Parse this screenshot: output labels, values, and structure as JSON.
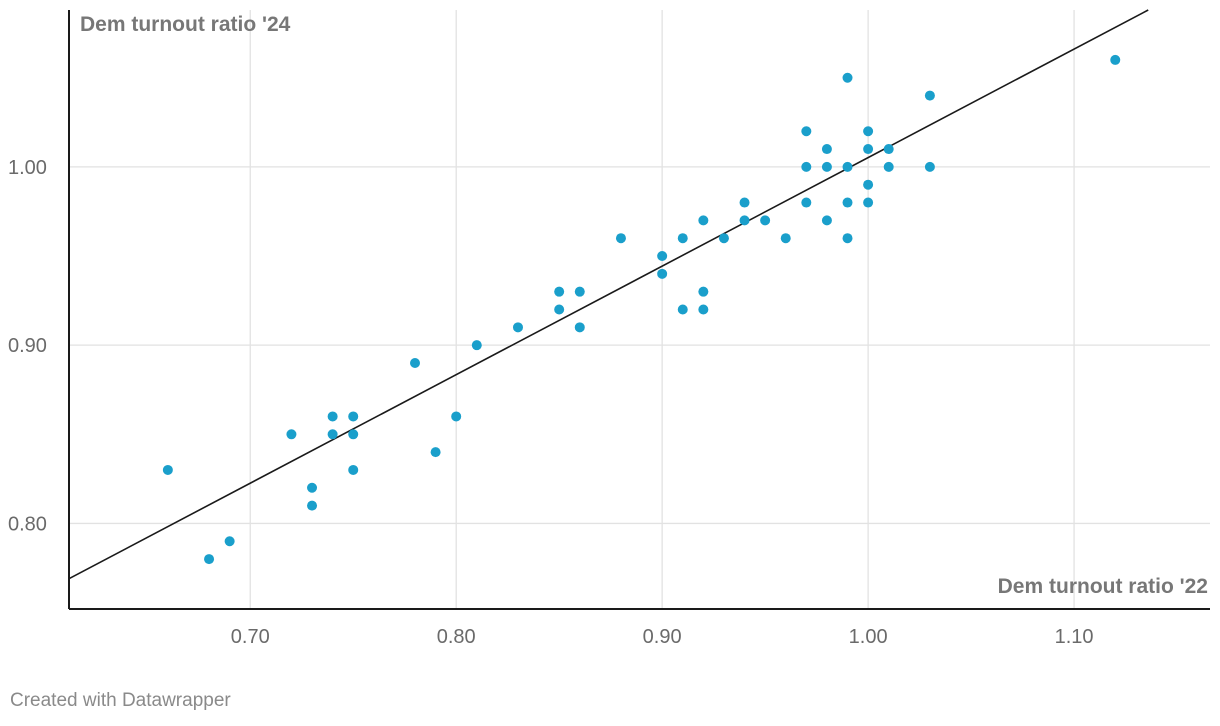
{
  "chart_data": {
    "type": "scatter",
    "xlabel": "Dem turnout ratio '22",
    "ylabel": "Dem turnout ratio '24",
    "xlim": [
      0.612,
      1.166
    ],
    "ylim": [
      0.752,
      1.088
    ],
    "x_ticks": [
      0.7,
      0.8,
      0.9,
      1.0,
      1.1
    ],
    "x_tick_labels": [
      "0.70",
      "0.80",
      "0.90",
      "1.00",
      "1.10"
    ],
    "y_ticks": [
      0.8,
      0.9,
      1.0
    ],
    "y_tick_labels": [
      "0.80",
      "0.90",
      "1.00"
    ],
    "grid": true,
    "point_color": "#1a9fcb",
    "trendline": {
      "x1": 0.612,
      "y1": 0.769,
      "x2": 1.136,
      "y2": 1.088,
      "color": "#1a1a1a"
    },
    "points": [
      {
        "x": 0.66,
        "y": 0.83
      },
      {
        "x": 0.68,
        "y": 0.78
      },
      {
        "x": 0.69,
        "y": 0.79
      },
      {
        "x": 0.72,
        "y": 0.85
      },
      {
        "x": 0.73,
        "y": 0.82
      },
      {
        "x": 0.73,
        "y": 0.81
      },
      {
        "x": 0.74,
        "y": 0.86
      },
      {
        "x": 0.74,
        "y": 0.85
      },
      {
        "x": 0.75,
        "y": 0.86
      },
      {
        "x": 0.75,
        "y": 0.85
      },
      {
        "x": 0.75,
        "y": 0.83
      },
      {
        "x": 0.78,
        "y": 0.89
      },
      {
        "x": 0.79,
        "y": 0.84
      },
      {
        "x": 0.8,
        "y": 0.86
      },
      {
        "x": 0.81,
        "y": 0.9
      },
      {
        "x": 0.83,
        "y": 0.91
      },
      {
        "x": 0.85,
        "y": 0.93
      },
      {
        "x": 0.85,
        "y": 0.92
      },
      {
        "x": 0.86,
        "y": 0.93
      },
      {
        "x": 0.86,
        "y": 0.91
      },
      {
        "x": 0.88,
        "y": 0.96
      },
      {
        "x": 0.9,
        "y": 0.95
      },
      {
        "x": 0.9,
        "y": 0.94
      },
      {
        "x": 0.91,
        "y": 0.96
      },
      {
        "x": 0.91,
        "y": 0.92
      },
      {
        "x": 0.92,
        "y": 0.97
      },
      {
        "x": 0.92,
        "y": 0.93
      },
      {
        "x": 0.92,
        "y": 0.92
      },
      {
        "x": 0.93,
        "y": 0.96
      },
      {
        "x": 0.94,
        "y": 0.98
      },
      {
        "x": 0.94,
        "y": 0.97
      },
      {
        "x": 0.95,
        "y": 0.97
      },
      {
        "x": 0.96,
        "y": 0.96
      },
      {
        "x": 0.97,
        "y": 1.02
      },
      {
        "x": 0.97,
        "y": 1.0
      },
      {
        "x": 0.97,
        "y": 0.98
      },
      {
        "x": 0.98,
        "y": 1.01
      },
      {
        "x": 0.98,
        "y": 1.0
      },
      {
        "x": 0.98,
        "y": 0.97
      },
      {
        "x": 0.99,
        "y": 1.05
      },
      {
        "x": 0.99,
        "y": 1.0
      },
      {
        "x": 0.99,
        "y": 0.98
      },
      {
        "x": 0.99,
        "y": 0.96
      },
      {
        "x": 1.0,
        "y": 1.02
      },
      {
        "x": 1.0,
        "y": 1.01
      },
      {
        "x": 1.0,
        "y": 0.99
      },
      {
        "x": 1.0,
        "y": 0.98
      },
      {
        "x": 1.01,
        "y": 1.01
      },
      {
        "x": 1.01,
        "y": 1.0
      },
      {
        "x": 1.03,
        "y": 1.04
      },
      {
        "x": 1.03,
        "y": 1.0
      },
      {
        "x": 1.12,
        "y": 1.06
      }
    ]
  },
  "footer": {
    "credit": "Created with Datawrapper"
  }
}
